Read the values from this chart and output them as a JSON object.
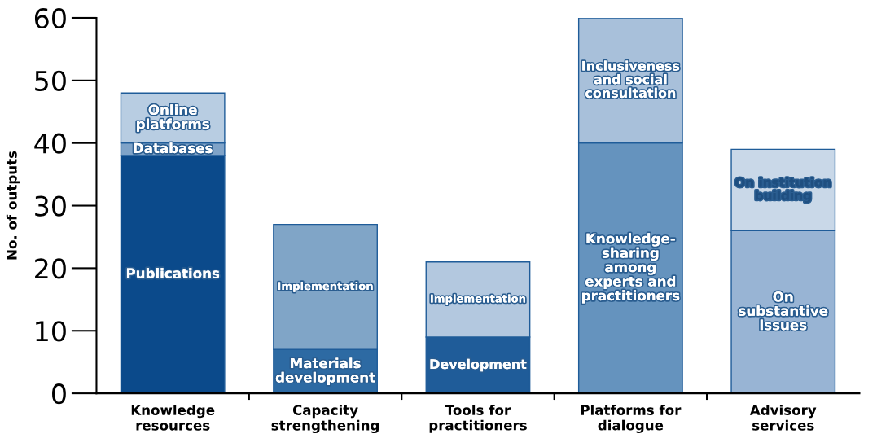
{
  "chart_data": {
    "type": "bar",
    "stacked": true,
    "ylabel": "No. of outputs",
    "categories": [
      "Knowledge\nresources",
      "Capacity\nstrengthening",
      "Tools for\npractitioners",
      "Platforms for\ndialogue",
      "Advisory\nservices"
    ],
    "series": [
      {
        "name": "Publications",
        "color": "#0b4a8b",
        "values": [
          38,
          null,
          null,
          null,
          null
        ]
      },
      {
        "name": "Databases",
        "color": "#7fa3c8",
        "values": [
          2,
          null,
          null,
          null,
          null
        ]
      },
      {
        "name": "Online\nplatforms",
        "color": "#b8cde2",
        "values": [
          8,
          null,
          null,
          null,
          null
        ]
      },
      {
        "name": "Materials\ndevelopment",
        "color": "#2d6aa3",
        "values": [
          null,
          7,
          null,
          null,
          null
        ]
      },
      {
        "name": "Implementation",
        "color": "#80a5c7",
        "values": [
          null,
          20,
          null,
          null,
          null
        ]
      },
      {
        "name": "Development",
        "color": "#1f5c99",
        "values": [
          null,
          null,
          9,
          null,
          null
        ]
      },
      {
        "name": "Implementation",
        "color": "#b3c8df",
        "values": [
          null,
          null,
          12,
          null,
          null
        ]
      },
      {
        "name": "Knowledge-\nsharing\namong\nexperts and\npractitioners",
        "color": "#6593be",
        "values": [
          null,
          null,
          null,
          40,
          null
        ]
      },
      {
        "name": "Inclusiveness\nand social\nconsultation",
        "color": "#a8c0da",
        "values": [
          null,
          null,
          null,
          20,
          null
        ]
      },
      {
        "name": "On\nsubstantive\nissues",
        "color": "#98b4d4",
        "values": [
          null,
          null,
          null,
          null,
          26
        ]
      },
      {
        "name": "On institution\nbuilding",
        "color": "#c9d8e8",
        "values": [
          null,
          null,
          null,
          null,
          13
        ]
      }
    ],
    "ylim": [
      0,
      60
    ],
    "yticks": [
      0,
      10,
      20,
      30,
      40,
      50,
      60
    ],
    "grid": false,
    "legend": false
  }
}
